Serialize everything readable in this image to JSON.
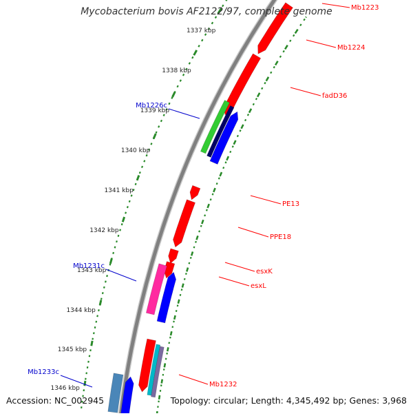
{
  "title": "Mycobacterium bovis AF2122/97, complete genome",
  "footer": {
    "accession": "Accession: NC_002945",
    "summary": "Topology: circular; Length: 4,345,492 bp; Genes: 3,968"
  },
  "colors": {
    "backbone": "#808080",
    "tick": "#2a8a2a",
    "forward_label": "#ff0000",
    "reverse_label": "#0000cc",
    "forward_gene": "#ff0000",
    "reverse_gene": "#0000ff"
  },
  "ticks": [
    {
      "label": "1337 kbp"
    },
    {
      "label": "1338 kbp"
    },
    {
      "label": "1339 kbp"
    },
    {
      "label": "1340 kbp"
    },
    {
      "label": "1341 kbp"
    },
    {
      "label": "1342 kbp"
    },
    {
      "label": "1343 kbp"
    },
    {
      "label": "1344 kbp"
    },
    {
      "label": "1345 kbp"
    },
    {
      "label": "1346 kbp"
    }
  ],
  "gene_labels": {
    "forward": [
      "Mb1223",
      "Mb1224",
      "fadD36",
      "PE13",
      "PPE18",
      "esxK",
      "esxL",
      "Mb1232"
    ],
    "reverse": [
      "Mb1226c",
      "Mb1231c",
      "Mb1233c"
    ]
  }
}
